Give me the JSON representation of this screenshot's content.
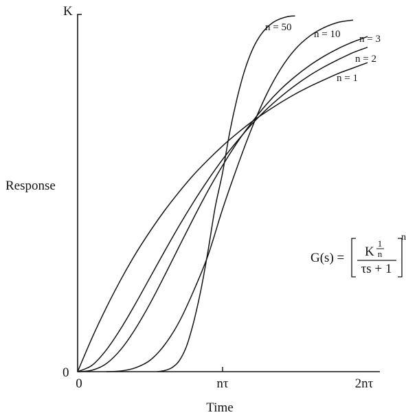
{
  "chart_data": {
    "type": "line",
    "xlabel": "Time",
    "ylabel": "Response",
    "x_ticks": [
      "0",
      "nτ",
      "2nτ"
    ],
    "y_ticks": [
      "0",
      "K"
    ],
    "xlim": [
      0,
      2
    ],
    "ylim": [
      0,
      1
    ],
    "x_units": "multiples of nτ",
    "y_units": "fraction of K",
    "grid": false,
    "series": [
      {
        "name": "n = 1",
        "x": [
          0,
          0.1,
          0.2,
          0.3,
          0.4,
          0.5,
          0.6,
          0.7,
          0.8,
          0.9,
          1.0,
          1.1,
          1.2,
          1.3,
          1.4,
          1.5,
          1.6,
          1.7,
          1.8,
          1.9,
          2.0
        ],
        "y": [
          0,
          0.095,
          0.181,
          0.259,
          0.33,
          0.393,
          0.451,
          0.503,
          0.551,
          0.593,
          0.632,
          0.667,
          0.699,
          0.727,
          0.753,
          0.777,
          0.798,
          0.817,
          0.835,
          0.85,
          0.865
        ]
      },
      {
        "name": "n = 2",
        "x": [
          0,
          0.1,
          0.2,
          0.3,
          0.4,
          0.5,
          0.6,
          0.7,
          0.8,
          0.9,
          1.0,
          1.1,
          1.2,
          1.3,
          1.4,
          1.5,
          1.6,
          1.7,
          1.8,
          1.9,
          2.0
        ],
        "y": [
          0,
          0.018,
          0.062,
          0.122,
          0.191,
          0.264,
          0.337,
          0.408,
          0.475,
          0.537,
          0.594,
          0.645,
          0.692,
          0.733,
          0.769,
          0.801,
          0.829,
          0.853,
          0.874,
          0.893,
          0.908
        ]
      },
      {
        "name": "n = 3",
        "x": [
          0,
          0.1,
          0.2,
          0.3,
          0.4,
          0.5,
          0.6,
          0.7,
          0.8,
          0.9,
          1.0,
          1.1,
          1.2,
          1.3,
          1.4,
          1.5,
          1.6,
          1.7,
          1.8,
          1.9,
          2.0
        ],
        "y": [
          0,
          0.004,
          0.023,
          0.063,
          0.121,
          0.191,
          0.269,
          0.35,
          0.43,
          0.507,
          0.577,
          0.641,
          0.697,
          0.747,
          0.79,
          0.826,
          0.857,
          0.883,
          0.905,
          0.923,
          0.938
        ]
      },
      {
        "name": "n = 10",
        "x": [
          0.2,
          0.3,
          0.4,
          0.5,
          0.6,
          0.7,
          0.8,
          0.9,
          1.0,
          1.1,
          1.2,
          1.3,
          1.4,
          1.5,
          1.6,
          1.7,
          1.8,
          1.9
        ],
        "y": [
          0.0,
          0.002,
          0.011,
          0.032,
          0.075,
          0.139,
          0.226,
          0.326,
          0.455,
          0.572,
          0.68,
          0.773,
          0.847,
          0.902,
          0.939,
          0.963,
          0.978,
          0.984
        ]
      },
      {
        "name": "n = 50",
        "x": [
          0.55,
          0.6,
          0.65,
          0.7,
          0.75,
          0.8,
          0.85,
          0.9,
          0.95,
          1.0,
          1.05,
          1.1,
          1.15,
          1.2,
          1.25,
          1.3,
          1.35,
          1.4,
          1.45,
          1.5
        ],
        "y": [
          0.0,
          0.003,
          0.011,
          0.03,
          0.07,
          0.138,
          0.228,
          0.339,
          0.462,
          0.557,
          0.672,
          0.765,
          0.84,
          0.896,
          0.935,
          0.961,
          0.978,
          0.988,
          0.994,
          0.996
        ]
      }
    ],
    "annotation": {
      "lhs": "G(s) =",
      "num_base": "K",
      "num_exp_top": "1",
      "num_exp_bottom": "n",
      "den": "τs + 1",
      "outer_exp": "n"
    }
  }
}
